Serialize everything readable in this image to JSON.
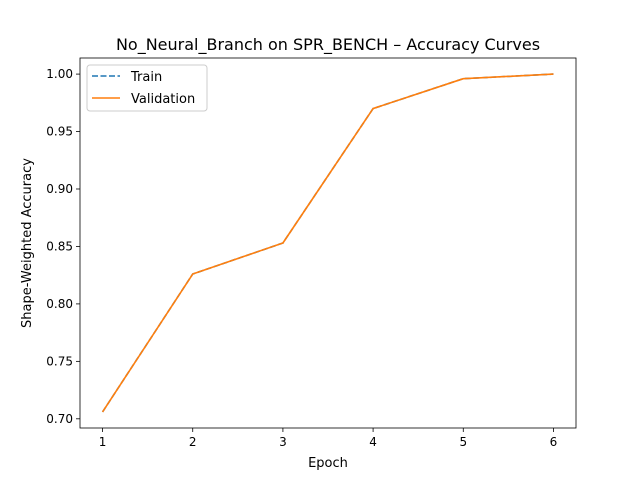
{
  "chart_data": {
    "type": "line",
    "title": "No_Neural_Branch on SPR_BENCH – Accuracy Curves",
    "xlabel": "Epoch",
    "ylabel": "Shape-Weighted Accuracy",
    "x": [
      1,
      2,
      3,
      4,
      5,
      6
    ],
    "xlim": [
      0.75,
      6.25
    ],
    "ylim": [
      0.692,
      1.014
    ],
    "x_ticks": [
      "1",
      "2",
      "3",
      "4",
      "5",
      "6"
    ],
    "y_ticks": [
      "0.70",
      "0.75",
      "0.80",
      "0.85",
      "0.90",
      "0.95",
      "1.00"
    ],
    "grid": false,
    "legend_position": "top-left",
    "series": [
      {
        "name": "Train",
        "color": "#1f77b4",
        "dash": "dashed",
        "values": [
          0.706,
          0.826,
          0.853,
          0.97,
          0.996,
          1.0
        ]
      },
      {
        "name": "Validation",
        "color": "#ff7f0e",
        "dash": "solid",
        "values": [
          0.706,
          0.826,
          0.853,
          0.97,
          0.996,
          1.0
        ]
      }
    ]
  }
}
